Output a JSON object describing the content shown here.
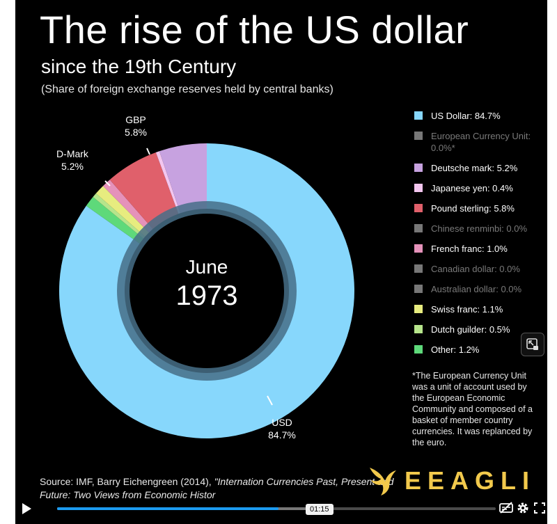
{
  "title": "The rise of the US dollar",
  "subtitle": "since the 19th Century",
  "note": "(Share of foreign exchange reserves held by central banks)",
  "center": {
    "month": "June",
    "year": "1973"
  },
  "chart_data": {
    "type": "donut",
    "title": "The rise of the US dollar",
    "subtitle": "since the 19th Century",
    "period": "June 1973",
    "unit": "%",
    "slices": [
      {
        "name": "US Dollar",
        "value": 84.7,
        "color": "#87d7fc"
      },
      {
        "name": "European Currency Unit",
        "value": 0.0,
        "color": "#777777"
      },
      {
        "name": "Deutsche mark",
        "value": 5.2,
        "color": "#c7a2e0"
      },
      {
        "name": "Japanese yen",
        "value": 0.4,
        "color": "#f3c6ef"
      },
      {
        "name": "Pound sterling",
        "value": 5.8,
        "color": "#e0606b"
      },
      {
        "name": "Chinese renminbi",
        "value": 0.0,
        "color": "#777777"
      },
      {
        "name": "French franc",
        "value": 1.0,
        "color": "#e592ba"
      },
      {
        "name": "Canadian dollar",
        "value": 0.0,
        "color": "#777777"
      },
      {
        "name": "Australian dollar",
        "value": 0.0,
        "color": "#777777"
      },
      {
        "name": "Swiss franc",
        "value": 1.1,
        "color": "#e7ec7f"
      },
      {
        "name": "Dutch guilder",
        "value": 0.5,
        "color": "#b6e58b"
      },
      {
        "name": "Other",
        "value": 1.2,
        "color": "#5ed97a"
      }
    ],
    "callouts": [
      {
        "name": "USD",
        "value": "84.7%"
      },
      {
        "name": "D-Mark",
        "value": "5.2%"
      },
      {
        "name": "GBP",
        "value": "5.8%"
      }
    ]
  },
  "legend": [
    {
      "label": "US Dollar: 84.7%",
      "color": "#87d7fc",
      "dim": false
    },
    {
      "label": "European Currency Unit: 0.0%*",
      "color": "#777777",
      "dim": true
    },
    {
      "label": "Deutsche mark: 5.2%",
      "color": "#c7a2e0",
      "dim": false
    },
    {
      "label": "Japanese yen: 0.4%",
      "color": "#f3c6ef",
      "dim": false
    },
    {
      "label": "Pound sterling: 5.8%",
      "color": "#e0606b",
      "dim": false
    },
    {
      "label": "Chinese renminbi: 0.0%",
      "color": "#777777",
      "dim": true
    },
    {
      "label": "French franc: 1.0%",
      "color": "#e592ba",
      "dim": false
    },
    {
      "label": "Canadian dollar: 0.0%",
      "color": "#777777",
      "dim": true
    },
    {
      "label": "Australian dollar: 0.0%",
      "color": "#777777",
      "dim": true
    },
    {
      "label": "Swiss franc: 1.1%",
      "color": "#e7ec7f",
      "dim": false
    },
    {
      "label": "Dutch guilder: 0.5%",
      "color": "#b6e58b",
      "dim": false
    },
    {
      "label": "Other: 1.2%",
      "color": "#5ed97a",
      "dim": false
    }
  ],
  "footnote": "*The European Currency Unit was a unit of account used by the European Economic Community and composed of a basket of member country currencies. It was replanced by the euro.",
  "source": {
    "prefix": "Source: IMF, Barry Eichengreen (2014), ",
    "reference": "\"Internation Currencies Past, Present and Future: Two Views from Economic Histor"
  },
  "brand": {
    "name": "EEAGLI",
    "logo_icon": "eagle-logo-icon",
    "color": "#f2c94c"
  },
  "player": {
    "time": "01:15",
    "progress": 0.505,
    "buffered": 0.59,
    "accent": "#1c9bf0",
    "icons": [
      "play-icon",
      "captions-off-icon",
      "settings-icon",
      "fullscreen-icon",
      "pip-icon"
    ]
  }
}
